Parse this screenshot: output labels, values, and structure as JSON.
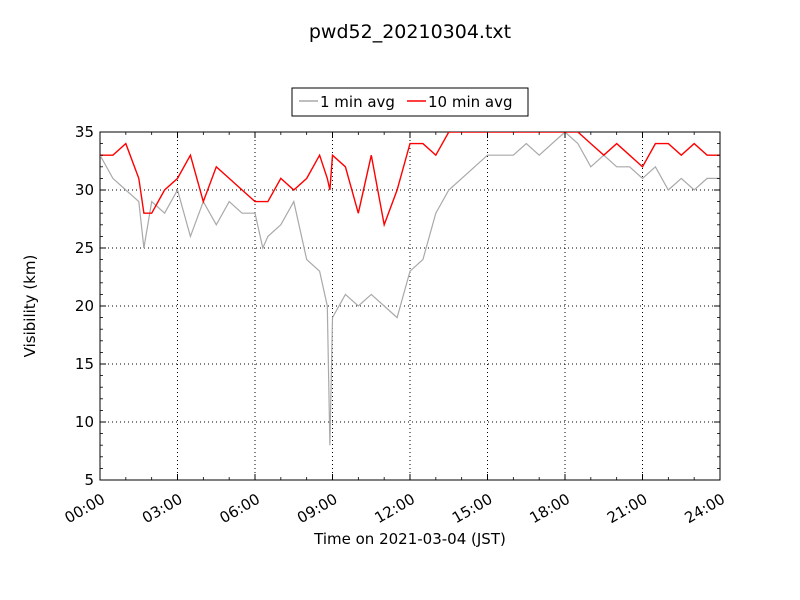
{
  "chart_data": {
    "type": "line",
    "title": "pwd52_20210304.txt",
    "xlabel": "Time on 2021-03-04 (JST)",
    "ylabel": "Visibility (km)",
    "xlim": [
      "00:00",
      "24:00"
    ],
    "ylim": [
      5,
      35
    ],
    "x_ticks": [
      "00:00",
      "03:00",
      "06:00",
      "09:00",
      "12:00",
      "15:00",
      "18:00",
      "21:00",
      "24:00"
    ],
    "y_ticks": [
      5,
      10,
      15,
      20,
      25,
      30,
      35
    ],
    "grid": "dotted",
    "legend_position": "top-center",
    "x_unit": "hours after 00:00",
    "series": [
      {
        "name": "1 min avg",
        "color": "#a9a9a9",
        "x": [
          0,
          0.5,
          1,
          1.5,
          1.7,
          2,
          2.5,
          3,
          3.5,
          4,
          4.5,
          5,
          5.5,
          6,
          6.3,
          6.5,
          7,
          7.5,
          8,
          8.5,
          8.8,
          8.9,
          9,
          9.5,
          10,
          10.5,
          11,
          11.5,
          12,
          12.5,
          13,
          13.5,
          14,
          14.5,
          15,
          15.5,
          16,
          16.5,
          17,
          17.5,
          18,
          18.5,
          19,
          19.5,
          20,
          20.5,
          21,
          21.5,
          22,
          22.5,
          23,
          23.5,
          24
        ],
        "y": [
          33,
          31,
          30,
          29,
          25,
          29,
          28,
          30,
          26,
          29,
          27,
          29,
          28,
          28,
          25,
          26,
          27,
          29,
          24,
          23,
          20,
          8,
          19,
          21,
          20,
          21,
          20,
          19,
          23,
          24,
          28,
          30,
          31,
          32,
          33,
          33,
          33,
          34,
          33,
          34,
          35,
          34,
          32,
          33,
          32,
          32,
          31,
          32,
          30,
          31,
          30,
          31,
          31
        ]
      },
      {
        "name": "10 min avg",
        "color": "#ff0000",
        "x": [
          0,
          0.5,
          1,
          1.5,
          1.7,
          2,
          2.5,
          3,
          3.5,
          4,
          4.5,
          5,
          5.5,
          6,
          6.3,
          6.5,
          7,
          7.5,
          8,
          8.5,
          8.8,
          8.9,
          9,
          9.5,
          10,
          10.5,
          11,
          11.5,
          12,
          12.5,
          13,
          13.5,
          14,
          14.5,
          15,
          15.5,
          16,
          16.5,
          17,
          17.5,
          18,
          18.5,
          19,
          19.5,
          20,
          20.5,
          21,
          21.5,
          22,
          22.5,
          23,
          23.5,
          24
        ],
        "y": [
          33,
          33,
          34,
          31,
          28,
          28,
          30,
          31,
          33,
          29,
          32,
          31,
          30,
          29,
          29,
          29,
          31,
          30,
          31,
          33,
          31,
          30,
          33,
          32,
          28,
          33,
          27,
          30,
          34,
          34,
          33,
          35,
          35,
          35,
          35,
          35,
          35,
          35,
          35,
          35,
          35,
          35,
          34,
          33,
          34,
          33,
          32,
          34,
          34,
          33,
          34,
          33,
          33
        ]
      }
    ]
  }
}
